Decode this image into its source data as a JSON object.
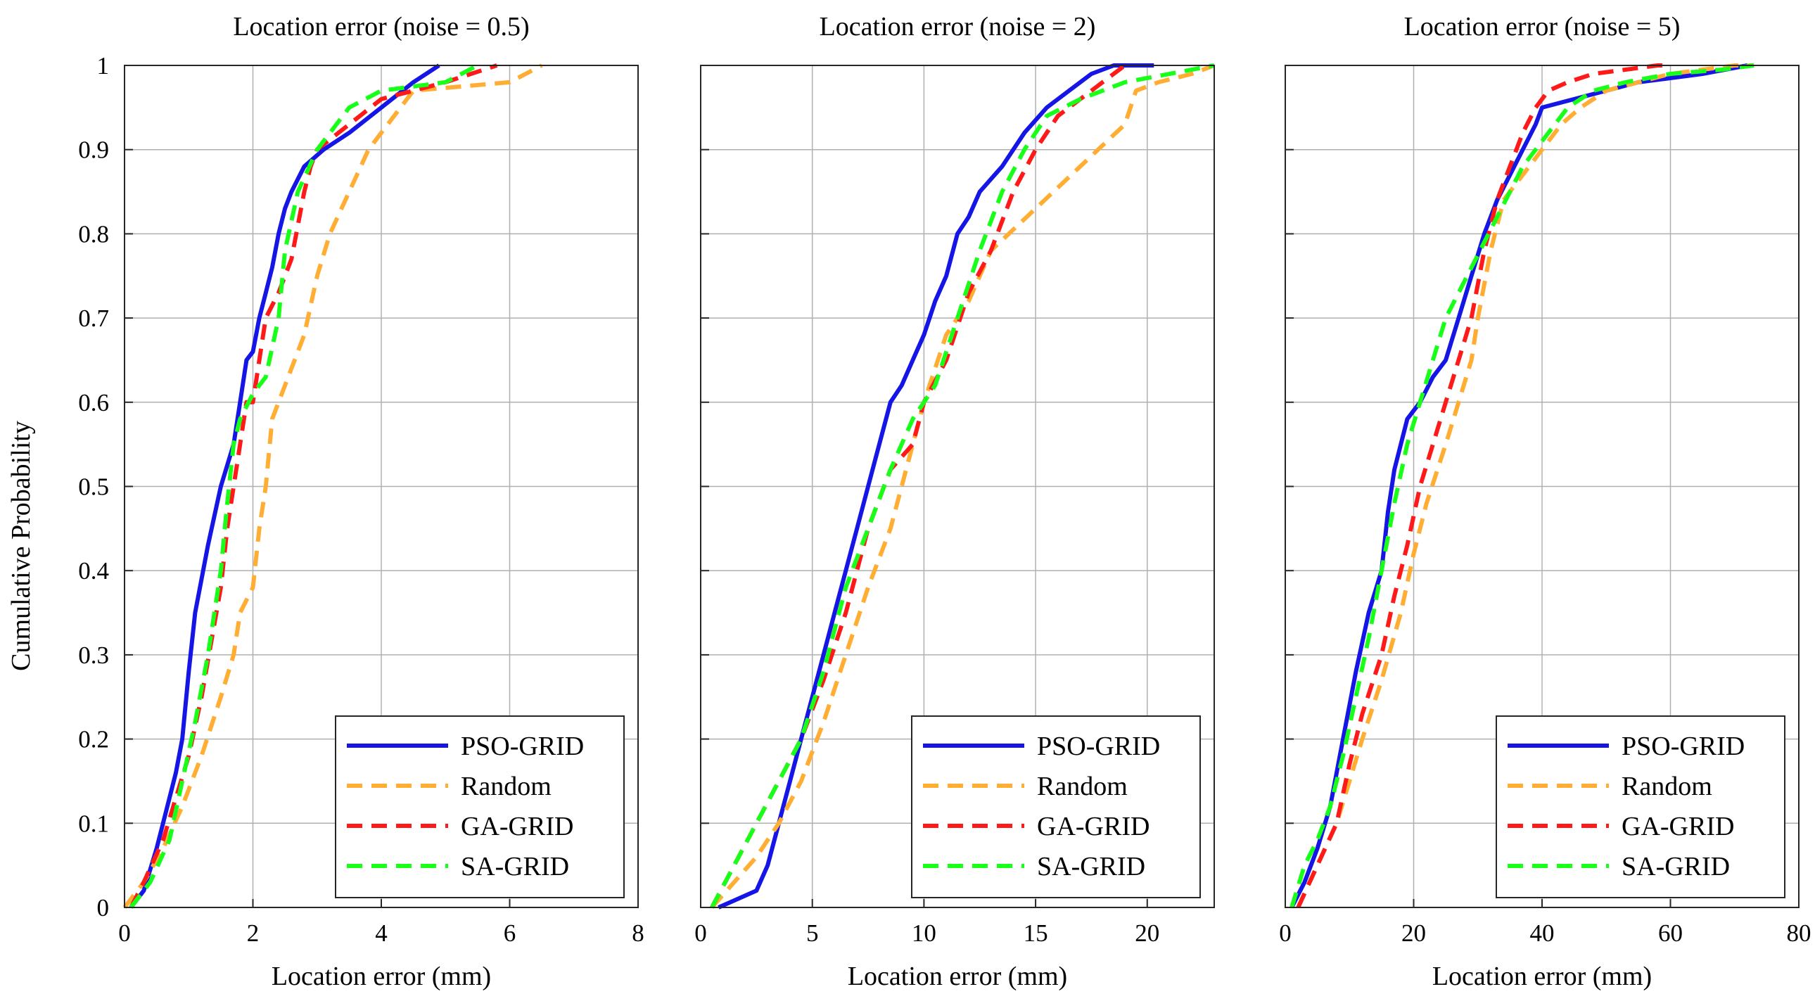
{
  "figure": {
    "ylabel": "Cumulative Probability",
    "legend_entries": [
      "PSO-GRID",
      "Random",
      "GA-GRID",
      "SA-GRID"
    ],
    "colors": {
      "PSO-GRID": "#1515e6",
      "Random": "#ffad33",
      "GA-GRID": "#ff1a1a",
      "SA-GRID": "#1aff1a"
    }
  },
  "chart_data": [
    {
      "type": "line",
      "title": "Location error (noise = 0.5)",
      "xlabel": "Location error (mm)",
      "ylabel": "Cumulative Probability",
      "xlim": [
        0,
        8
      ],
      "ylim": [
        0,
        1
      ],
      "xticks": [
        0,
        2,
        4,
        6,
        8
      ],
      "xtick_labels": [
        "0",
        "2",
        "4",
        "6",
        "8"
      ],
      "yticks": [
        0,
        0.1,
        0.2,
        0.3,
        0.4,
        0.5,
        0.6,
        0.7,
        0.8,
        0.9,
        1
      ],
      "ytick_labels": [
        "0",
        "0.1",
        "0.2",
        "0.3",
        "0.4",
        "0.5",
        "0.6",
        "0.7",
        "0.8",
        "0.9",
        "1"
      ],
      "grid": true,
      "legend": "bottom-right",
      "series": [
        {
          "name": "PSO-GRID",
          "x": [
            0.1,
            0.3,
            0.5,
            0.6,
            0.7,
            0.8,
            0.9,
            1.0,
            1.1,
            1.3,
            1.5,
            1.7,
            1.8,
            1.9,
            2.0,
            2.1,
            2.2,
            2.3,
            2.4,
            2.5,
            2.6,
            2.8,
            3.1,
            3.5,
            4.0,
            4.5,
            4.9
          ],
          "y": [
            0.0,
            0.02,
            0.07,
            0.1,
            0.13,
            0.16,
            0.2,
            0.28,
            0.35,
            0.43,
            0.5,
            0.55,
            0.6,
            0.65,
            0.66,
            0.7,
            0.73,
            0.76,
            0.8,
            0.83,
            0.85,
            0.88,
            0.9,
            0.92,
            0.95,
            0.98,
            1.0
          ]
        },
        {
          "name": "Random",
          "x": [
            0.0,
            0.3,
            0.6,
            0.9,
            1.2,
            1.5,
            1.7,
            1.8,
            2.0,
            2.1,
            2.2,
            2.3,
            2.5,
            2.8,
            3.0,
            3.2,
            3.5,
            3.8,
            4.1,
            4.5,
            6.0,
            6.5
          ],
          "y": [
            0.0,
            0.03,
            0.07,
            0.12,
            0.18,
            0.25,
            0.3,
            0.35,
            0.38,
            0.45,
            0.5,
            0.58,
            0.62,
            0.68,
            0.75,
            0.8,
            0.85,
            0.9,
            0.93,
            0.97,
            0.98,
            1.0
          ]
        },
        {
          "name": "GA-GRID",
          "x": [
            0.1,
            0.3,
            0.6,
            0.8,
            1.0,
            1.2,
            1.5,
            1.6,
            1.7,
            1.8,
            1.9,
            2.0,
            2.1,
            2.2,
            2.4,
            2.6,
            2.8,
            2.9,
            3.0,
            3.5,
            4.0,
            5.0,
            5.8
          ],
          "y": [
            0.0,
            0.03,
            0.08,
            0.13,
            0.18,
            0.25,
            0.38,
            0.45,
            0.5,
            0.55,
            0.6,
            0.6,
            0.65,
            0.7,
            0.73,
            0.77,
            0.85,
            0.88,
            0.9,
            0.93,
            0.96,
            0.98,
            1.0
          ]
        },
        {
          "name": "SA-GRID",
          "x": [
            0.1,
            0.4,
            0.7,
            0.9,
            1.1,
            1.3,
            1.5,
            1.6,
            1.7,
            1.8,
            2.0,
            2.2,
            2.4,
            2.5,
            2.7,
            3.0,
            3.5,
            4.0,
            5.0,
            5.5
          ],
          "y": [
            0.0,
            0.03,
            0.08,
            0.15,
            0.22,
            0.3,
            0.4,
            0.48,
            0.55,
            0.58,
            0.61,
            0.63,
            0.7,
            0.78,
            0.85,
            0.9,
            0.95,
            0.97,
            0.98,
            1.0
          ]
        }
      ]
    },
    {
      "type": "line",
      "title": "Location error (noise = 2)",
      "xlabel": "Location error (mm)",
      "ylabel": "Cumulative Probability",
      "xlim": [
        0,
        23
      ],
      "ylim": [
        0,
        1
      ],
      "xticks": [
        0,
        5,
        10,
        15,
        20
      ],
      "xtick_labels": [
        "0",
        "5",
        "10",
        "15",
        "20"
      ],
      "yticks": [
        0,
        0.1,
        0.2,
        0.3,
        0.4,
        0.5,
        0.6,
        0.7,
        0.8,
        0.9,
        1
      ],
      "ytick_labels": [
        "",
        "",
        "",
        "",
        "",
        "",
        "",
        "",
        "",
        "",
        ""
      ],
      "grid": true,
      "legend": "bottom-right",
      "series": [
        {
          "name": "PSO-GRID",
          "x": [
            0.8,
            2.5,
            3.0,
            3.5,
            4.0,
            4.5,
            5.0,
            5.5,
            6.0,
            6.5,
            7.0,
            7.5,
            8.0,
            8.5,
            9.0,
            9.5,
            10.0,
            10.5,
            11.0,
            11.5,
            12.0,
            12.5,
            13.5,
            14.5,
            15.5,
            16.5,
            17.5,
            18.5,
            20.3
          ],
          "y": [
            0.0,
            0.02,
            0.05,
            0.1,
            0.15,
            0.2,
            0.25,
            0.3,
            0.35,
            0.4,
            0.45,
            0.5,
            0.55,
            0.6,
            0.62,
            0.65,
            0.68,
            0.72,
            0.75,
            0.8,
            0.82,
            0.85,
            0.88,
            0.92,
            0.95,
            0.97,
            0.99,
            1.0,
            1.0
          ]
        },
        {
          "name": "Random",
          "x": [
            0.5,
            1.5,
            2.5,
            3.5,
            4.5,
            5.5,
            6.5,
            7.5,
            8.5,
            9.0,
            10.0,
            11.0,
            12.0,
            13.0,
            15.0,
            17.0,
            19.0,
            19.5,
            20.5,
            22.0,
            23.0
          ],
          "y": [
            0.0,
            0.03,
            0.06,
            0.1,
            0.15,
            0.22,
            0.3,
            0.38,
            0.45,
            0.5,
            0.6,
            0.68,
            0.72,
            0.78,
            0.83,
            0.88,
            0.93,
            0.97,
            0.98,
            0.99,
            1.0
          ]
        },
        {
          "name": "GA-GRID",
          "x": [
            0.5,
            1.5,
            2.5,
            3.5,
            4.5,
            5.5,
            6.5,
            7.5,
            8.5,
            9.5,
            10.0,
            11.0,
            12.0,
            13.0,
            14.0,
            15.0,
            16.0,
            17.0,
            18.0,
            19.0
          ],
          "y": [
            0.0,
            0.05,
            0.1,
            0.15,
            0.2,
            0.27,
            0.35,
            0.45,
            0.52,
            0.55,
            0.6,
            0.65,
            0.73,
            0.78,
            0.85,
            0.9,
            0.94,
            0.96,
            0.98,
            1.0
          ]
        },
        {
          "name": "SA-GRID",
          "x": [
            0.5,
            1.5,
            2.5,
            3.5,
            4.5,
            5.5,
            6.5,
            7.5,
            8.5,
            9.5,
            10.5,
            11.5,
            12.5,
            13.5,
            14.5,
            15.5,
            17.0,
            19.0,
            21.0,
            23.0
          ],
          "y": [
            0.0,
            0.05,
            0.1,
            0.15,
            0.2,
            0.28,
            0.38,
            0.45,
            0.52,
            0.58,
            0.62,
            0.7,
            0.78,
            0.85,
            0.9,
            0.94,
            0.96,
            0.98,
            0.99,
            1.0
          ]
        }
      ]
    },
    {
      "type": "line",
      "title": "Location error (noise = 5)",
      "xlabel": "Location error (mm)",
      "ylabel": "Cumulative Probability",
      "xlim": [
        0,
        80
      ],
      "ylim": [
        0,
        1
      ],
      "xticks": [
        0,
        20,
        40,
        60,
        80
      ],
      "xtick_labels": [
        "0",
        "20",
        "40",
        "60",
        "80"
      ],
      "yticks": [
        0,
        0.1,
        0.2,
        0.3,
        0.4,
        0.5,
        0.6,
        0.7,
        0.8,
        0.9,
        1
      ],
      "ytick_labels": [
        "",
        "",
        "",
        "",
        "",
        "",
        "",
        "",
        "",
        "",
        ""
      ],
      "grid": true,
      "legend": "bottom-right",
      "series": [
        {
          "name": "PSO-GRID",
          "x": [
            1.0,
            3.0,
            5.0,
            7.0,
            9.0,
            11.0,
            13.0,
            15.0,
            16.0,
            17.0,
            19.0,
            21.0,
            23.0,
            25.0,
            27.0,
            29.0,
            31.0,
            33.0,
            35.0,
            37.0,
            39.0,
            40.0,
            45.0,
            50.0,
            55.0,
            60.0,
            65.0,
            72.0
          ],
          "y": [
            0.0,
            0.03,
            0.07,
            0.12,
            0.2,
            0.28,
            0.35,
            0.4,
            0.47,
            0.52,
            0.58,
            0.6,
            0.63,
            0.65,
            0.7,
            0.75,
            0.8,
            0.84,
            0.87,
            0.9,
            0.93,
            0.95,
            0.96,
            0.97,
            0.98,
            0.985,
            0.99,
            1.0
          ]
        },
        {
          "name": "Random",
          "x": [
            2.0,
            5.0,
            8.0,
            10.0,
            12.0,
            15.0,
            18.0,
            20.0,
            22.0,
            25.0,
            27.0,
            29.0,
            30.0,
            32.0,
            34.0,
            36.0,
            38.0,
            40.0,
            43.0,
            46.0,
            50.0,
            55.0,
            60.0,
            65.0,
            70.0,
            73.0
          ],
          "y": [
            0.0,
            0.05,
            0.1,
            0.15,
            0.2,
            0.27,
            0.35,
            0.42,
            0.48,
            0.55,
            0.6,
            0.65,
            0.7,
            0.78,
            0.84,
            0.86,
            0.88,
            0.9,
            0.93,
            0.95,
            0.97,
            0.98,
            0.99,
            0.995,
            1.0,
            1.0
          ]
        },
        {
          "name": "GA-GRID",
          "x": [
            2.0,
            5.0,
            8.0,
            10.0,
            12.0,
            15.0,
            17.0,
            19.0,
            21.0,
            23.0,
            25.0,
            27.0,
            29.0,
            31.0,
            33.0,
            35.0,
            37.0,
            39.0,
            41.0,
            44.0,
            48.0,
            53.0,
            58.0,
            60.0
          ],
          "y": [
            0.0,
            0.05,
            0.1,
            0.17,
            0.23,
            0.3,
            0.37,
            0.43,
            0.5,
            0.55,
            0.6,
            0.65,
            0.7,
            0.78,
            0.84,
            0.88,
            0.92,
            0.95,
            0.97,
            0.98,
            0.99,
            0.995,
            1.0,
            1.0
          ]
        },
        {
          "name": "SA-GRID",
          "x": [
            1.0,
            3.0,
            5.0,
            7.0,
            9.0,
            11.0,
            13.0,
            15.0,
            17.0,
            19.0,
            21.0,
            23.0,
            25.0,
            27.0,
            29.0,
            31.0,
            33.0,
            35.0,
            37.0,
            39.0,
            41.0,
            44.0,
            48.0,
            53.0,
            60.0,
            68.0,
            73.0
          ],
          "y": [
            0.0,
            0.05,
            0.08,
            0.12,
            0.18,
            0.25,
            0.32,
            0.4,
            0.48,
            0.55,
            0.6,
            0.65,
            0.7,
            0.73,
            0.76,
            0.79,
            0.82,
            0.85,
            0.88,
            0.9,
            0.92,
            0.95,
            0.97,
            0.98,
            0.99,
            0.995,
            1.0
          ]
        }
      ]
    }
  ]
}
